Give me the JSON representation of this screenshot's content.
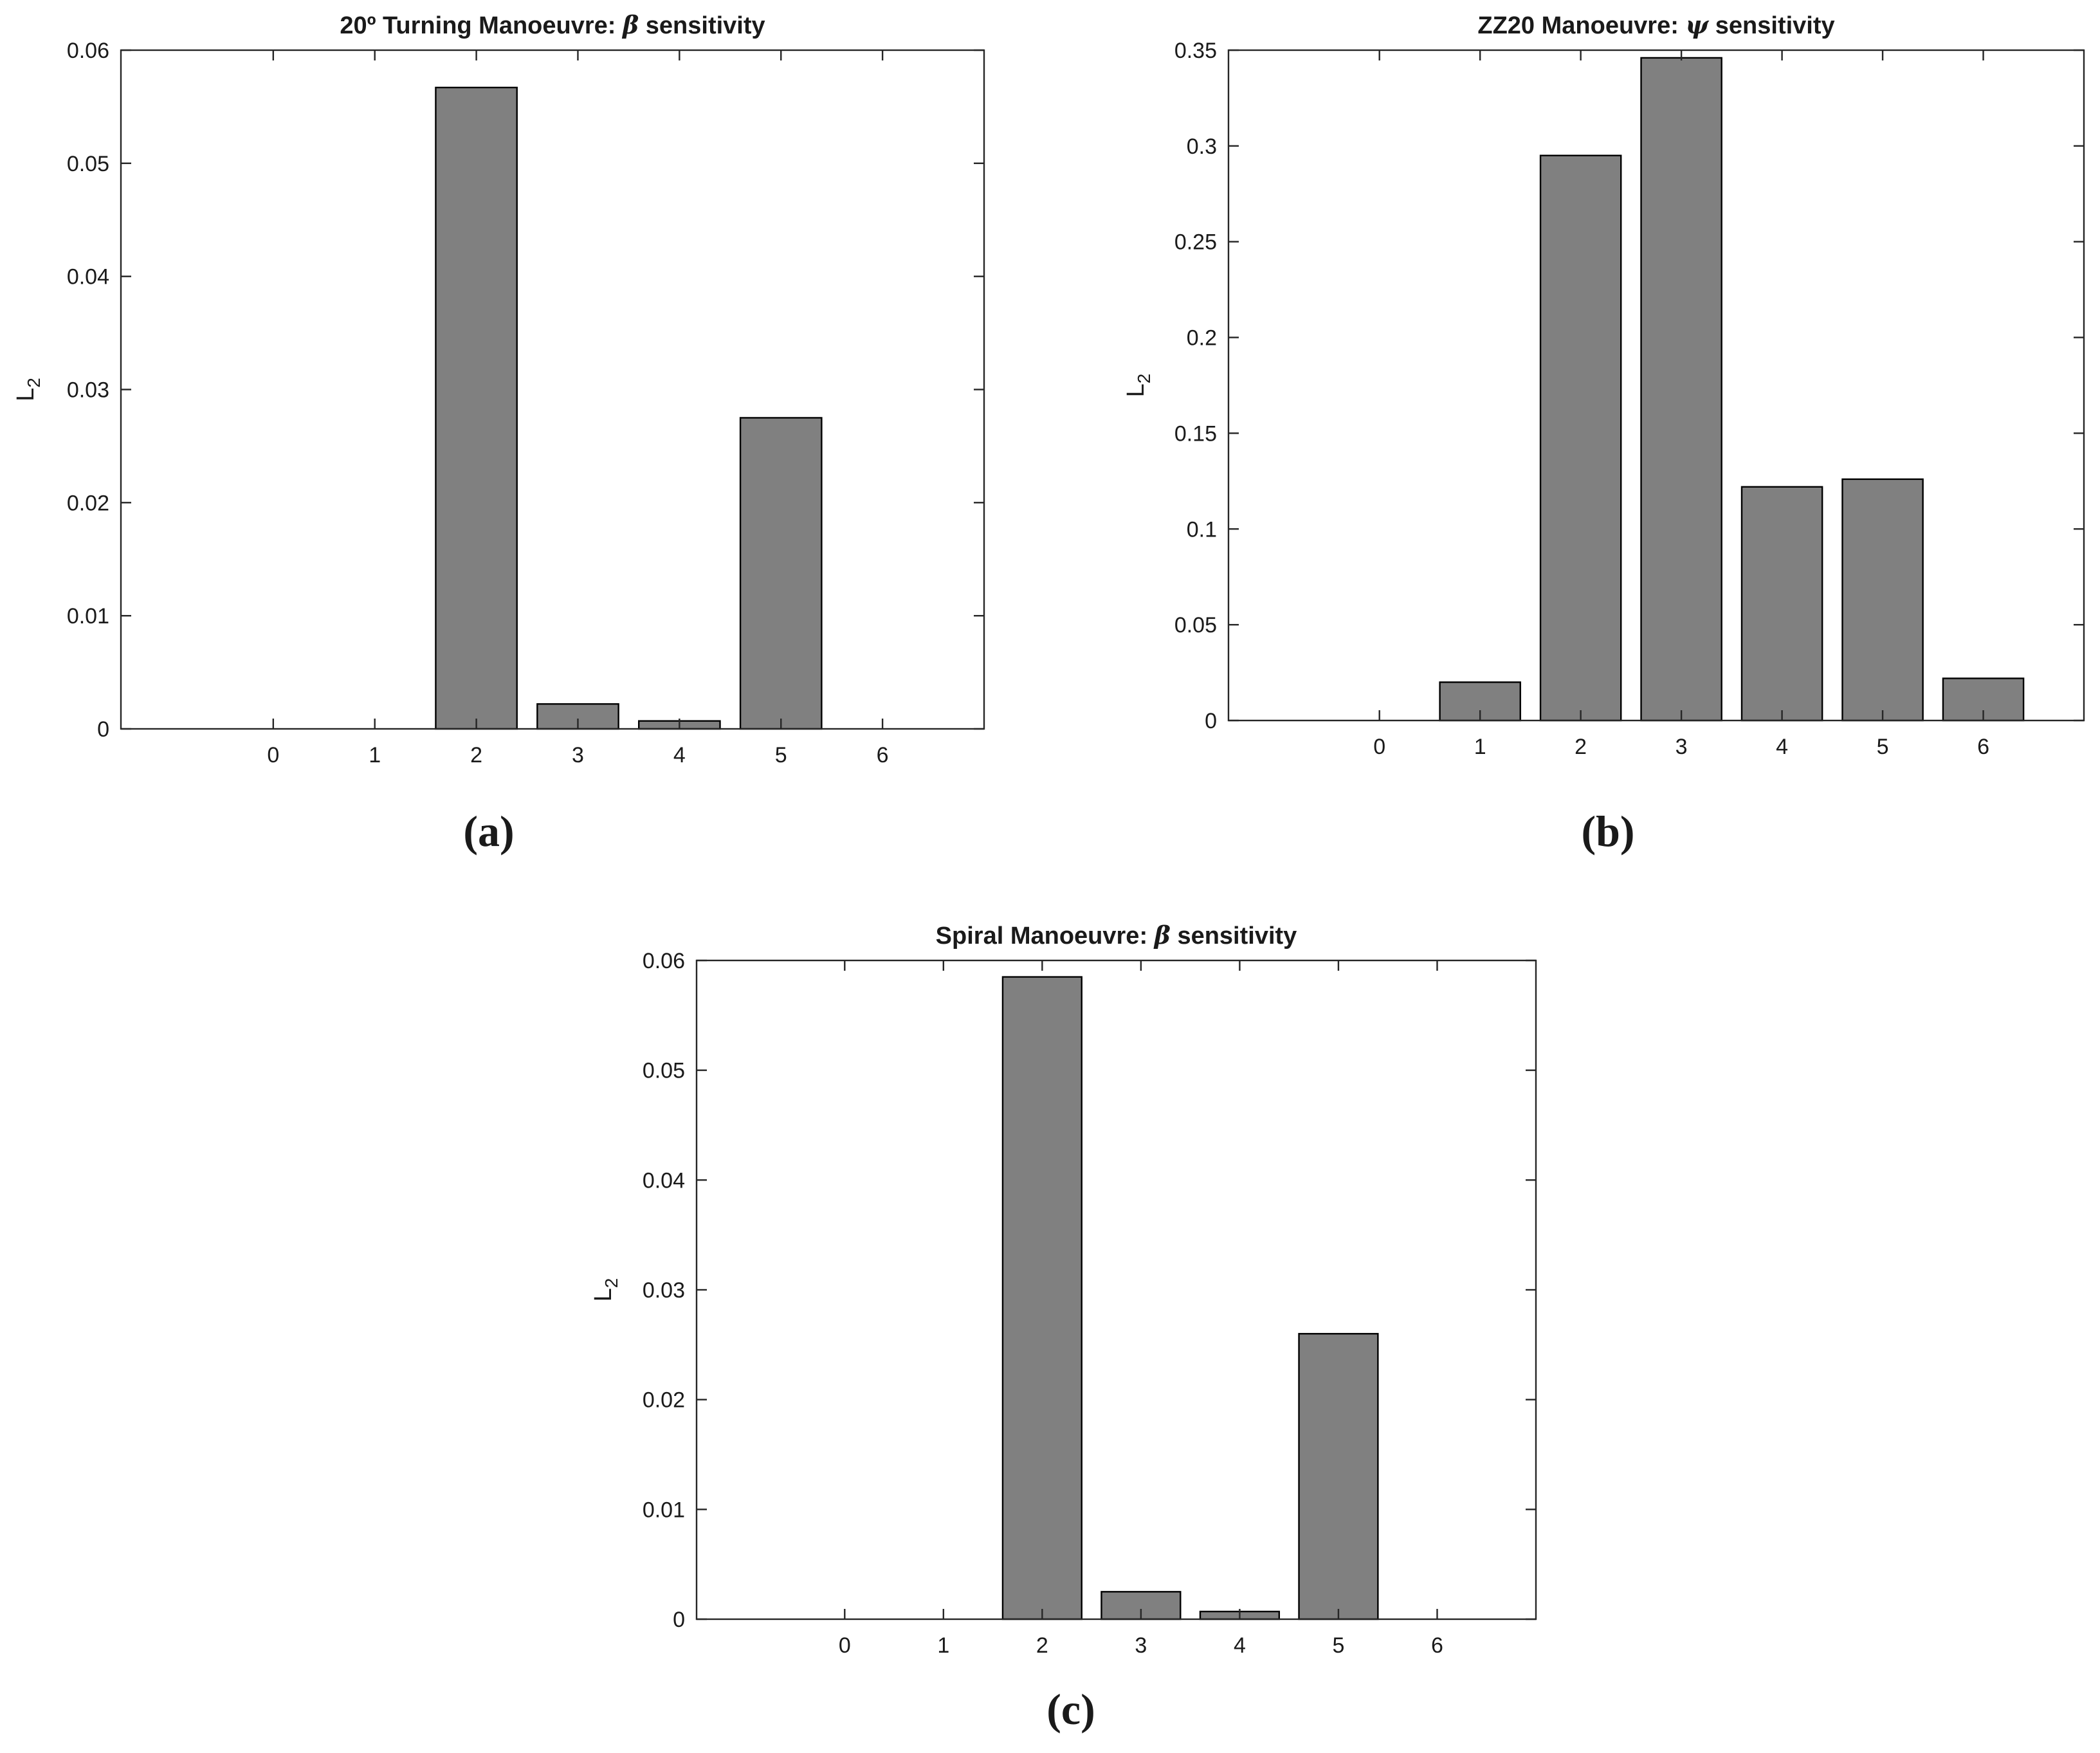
{
  "chart_data": [
    {
      "type": "bar",
      "title": {
        "prefix": "20º Turning Manoeuvre: ",
        "symbol": "β",
        "suffix": " sensitivity"
      },
      "xlabel": "",
      "ylabel": {
        "main": "L",
        "sub": "2"
      },
      "categories": [
        "0",
        "1",
        "2",
        "3",
        "4",
        "5",
        "6"
      ],
      "values": [
        0,
        0,
        0.0567,
        0.0022,
        0.0007,
        0.0275,
        0
      ],
      "xlim": [
        -1.5,
        7.0
      ],
      "ylim": [
        0,
        0.06
      ],
      "yticks": [
        0,
        0.01,
        0.02,
        0.03,
        0.04,
        0.05,
        0.06
      ],
      "ytick_labels": [
        "0",
        "0.01",
        "0.02",
        "0.03",
        "0.04",
        "0.05",
        "0.06"
      ],
      "bar_color": "#808080",
      "grid": false,
      "panel_label": "(a)"
    },
    {
      "type": "bar",
      "title": {
        "prefix": "ZZ20 Manoeuvre: ",
        "symbol": "ψ",
        "suffix": " sensitivity"
      },
      "xlabel": "",
      "ylabel": {
        "main": "L",
        "sub": "2"
      },
      "categories": [
        "0",
        "1",
        "2",
        "3",
        "4",
        "5",
        "6"
      ],
      "values": [
        0,
        0.02,
        0.295,
        0.346,
        0.122,
        0.126,
        0.022
      ],
      "xlim": [
        -1.5,
        7.0
      ],
      "ylim": [
        0,
        0.35
      ],
      "yticks": [
        0,
        0.05,
        0.1,
        0.15,
        0.2,
        0.25,
        0.3,
        0.35
      ],
      "ytick_labels": [
        "0",
        "0.05",
        "0.1",
        "0.15",
        "0.2",
        "0.25",
        "0.3",
        "0.35"
      ],
      "bar_color": "#808080",
      "grid": false,
      "panel_label": "(b)"
    },
    {
      "type": "bar",
      "title": {
        "prefix": "Spiral Manoeuvre: ",
        "symbol": "β",
        "suffix": " sensitivity"
      },
      "xlabel": "",
      "ylabel": {
        "main": "L",
        "sub": "2"
      },
      "categories": [
        "0",
        "1",
        "2",
        "3",
        "4",
        "5",
        "6"
      ],
      "values": [
        0,
        0,
        0.0585,
        0.0025,
        0.0007,
        0.026,
        0
      ],
      "xlim": [
        -1.5,
        7.0
      ],
      "ylim": [
        0,
        0.06
      ],
      "yticks": [
        0,
        0.01,
        0.02,
        0.03,
        0.04,
        0.05,
        0.06
      ],
      "ytick_labels": [
        "0",
        "0.01",
        "0.02",
        "0.03",
        "0.04",
        "0.05",
        "0.06"
      ],
      "bar_color": "#808080",
      "grid": false,
      "panel_label": "(c)"
    }
  ]
}
